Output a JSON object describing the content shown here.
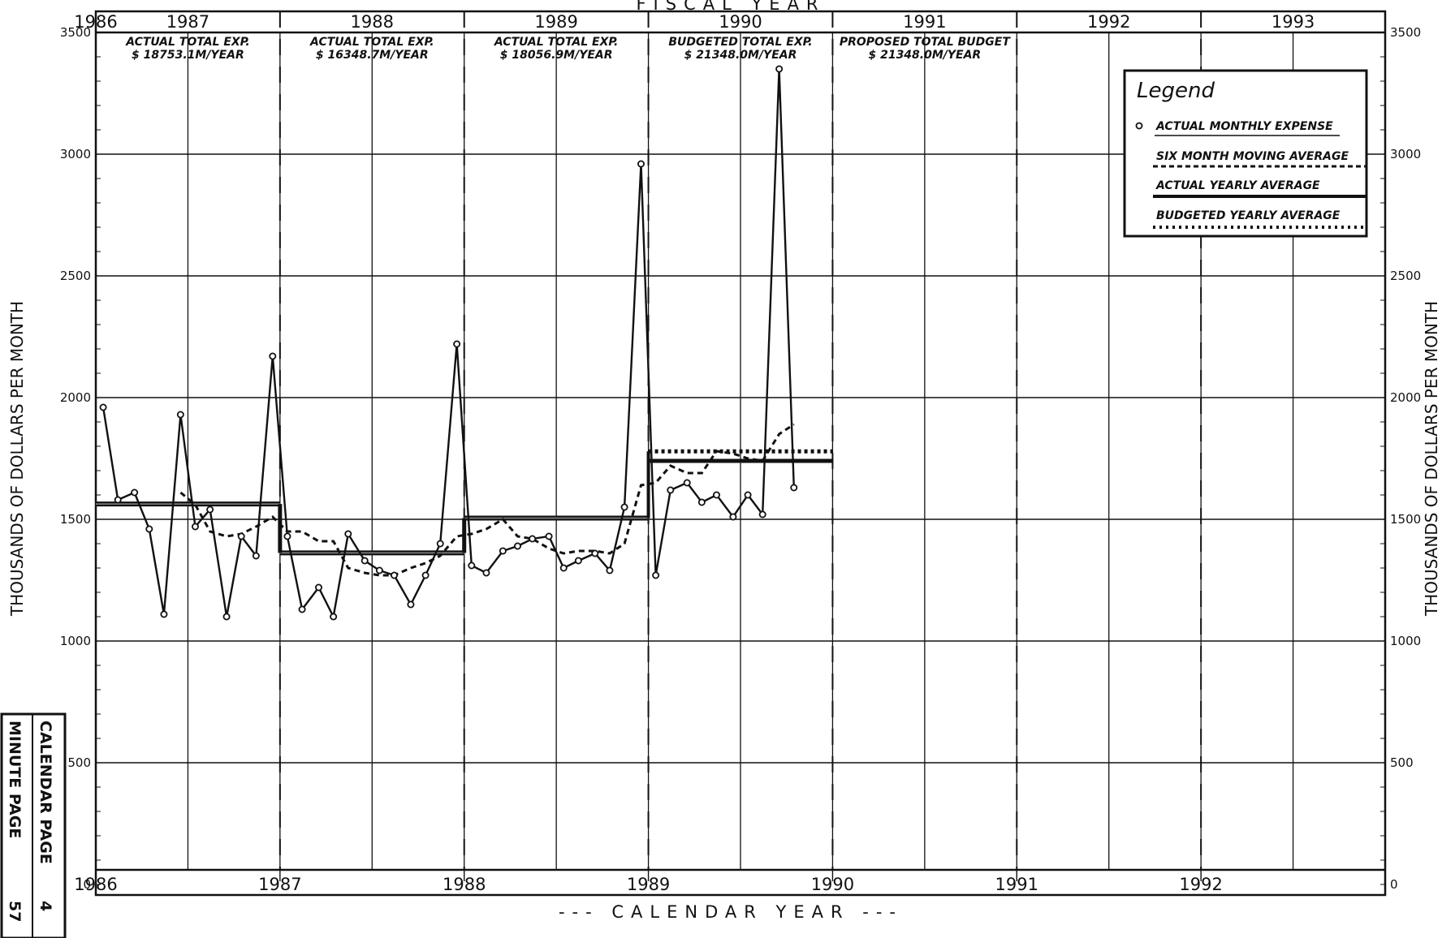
{
  "chart_data": {
    "type": "line",
    "title": "FISCAL YEAR",
    "xlabel": "--- CALENDAR YEAR ---",
    "ylabel": "THOUSANDS OF DOLLARS PER MONTH",
    "ylim": [
      0,
      3500
    ],
    "y_ticks": [
      "0",
      "500",
      "1000",
      "1500",
      "2000",
      "2500",
      "3000",
      "3500"
    ],
    "x_range": [
      1986,
      1993
    ],
    "calendar_years": [
      "1986",
      "1987",
      "1988",
      "1989",
      "1990",
      "1991",
      "1992"
    ],
    "fiscal_years": [
      {
        "label": "1986",
        "start": 1985.5
      },
      {
        "label": "1987",
        "start": 1986.0
      },
      {
        "label": "1988",
        "start": 1987.0
      },
      {
        "label": "1989",
        "start": 1988.0
      },
      {
        "label": "1990",
        "start": 1989.0
      },
      {
        "label": "1991",
        "start": 1990.0
      },
      {
        "label": "1992",
        "start": 1991.0
      },
      {
        "label": "1993",
        "start": 1992.0
      }
    ],
    "annotations": [
      {
        "lines": [
          "ACTUAL TOTAL EXP.",
          "$ 18753.1M/YEAR"
        ],
        "x": 1986.5
      },
      {
        "lines": [
          "ACTUAL TOTAL EXP.",
          "$ 16348.7M/YEAR"
        ],
        "x": 1987.5
      },
      {
        "lines": [
          "ACTUAL TOTAL EXP.",
          "$ 18056.9M/YEAR"
        ],
        "x": 1988.5
      },
      {
        "lines": [
          "BUDGETED TOTAL EXP.",
          "$ 21348.0M/YEAR"
        ],
        "x": 1989.5
      },
      {
        "lines": [
          "PROPOSED TOTAL BUDGET",
          "$ 21348.0M/YEAR"
        ],
        "x": 1990.5
      }
    ],
    "grid": true,
    "legend_position": "top-right",
    "legend_title": "Legend",
    "series": [
      {
        "name": "ACTUAL MONTHLY EXPENSE",
        "style": "solid-markers",
        "x": [
          1986.04,
          1986.12,
          1986.21,
          1986.29,
          1986.37,
          1986.46,
          1986.54,
          1986.62,
          1986.71,
          1986.79,
          1986.87,
          1986.96,
          1987.04,
          1987.12,
          1987.21,
          1987.29,
          1987.37,
          1987.46,
          1987.54,
          1987.62,
          1987.71,
          1987.79,
          1987.87,
          1987.96,
          1988.04,
          1988.12,
          1988.21,
          1988.29,
          1988.37,
          1988.46,
          1988.54,
          1988.62,
          1988.71,
          1988.79,
          1988.87,
          1988.96,
          1989.04,
          1989.12,
          1989.21,
          1989.29,
          1989.37,
          1989.46,
          1989.54,
          1989.62,
          1989.71,
          1989.79,
          1989.87,
          1989.96
        ],
        "y": [
          1960,
          1580,
          1610,
          1460,
          1110,
          1930,
          1470,
          1540,
          1100,
          1430,
          1350,
          2170,
          1430,
          1130,
          1220,
          1100,
          1440,
          1330,
          1290,
          1270,
          1150,
          1270,
          1400,
          2220,
          1310,
          1280,
          1370,
          1390,
          1420,
          1430,
          1300,
          1330,
          1360,
          1290,
          1550,
          2960,
          1270,
          1620,
          1650,
          1570,
          1600,
          1510,
          1600,
          1520,
          3350,
          1630,
          null,
          null
        ]
      },
      {
        "name": "SIX MONTH MOVING AVERAGE",
        "style": "dashed",
        "x": [
          1986.46,
          1986.54,
          1986.62,
          1986.71,
          1986.79,
          1986.87,
          1986.96,
          1987.04,
          1987.12,
          1987.21,
          1987.29,
          1987.37,
          1987.46,
          1987.54,
          1987.62,
          1987.71,
          1987.79,
          1987.87,
          1987.96,
          1988.04,
          1988.12,
          1988.21,
          1988.29,
          1988.37,
          1988.46,
          1988.54,
          1988.62,
          1988.71,
          1988.79,
          1988.87,
          1988.96,
          1989.04,
          1989.12,
          1989.21,
          1989.29,
          1989.37,
          1989.46,
          1989.54,
          1989.62,
          1989.71,
          1989.79
        ],
        "y": [
          1610,
          1560,
          1450,
          1430,
          1440,
          1470,
          1510,
          1450,
          1450,
          1410,
          1410,
          1300,
          1280,
          1270,
          1270,
          1300,
          1320,
          1350,
          1430,
          1440,
          1460,
          1500,
          1430,
          1420,
          1380,
          1360,
          1370,
          1370,
          1360,
          1400,
          1640,
          1650,
          1720,
          1690,
          1690,
          1780,
          1770,
          1750,
          1740,
          1850,
          1890
        ]
      },
      {
        "name": "ACTUAL YEARLY AVERAGE",
        "style": "step-solid",
        "segments": [
          {
            "x": [
              1986.0,
              1987.0
            ],
            "y": 1563
          },
          {
            "x": [
              1987.0,
              1988.0
            ],
            "y": 1362
          },
          {
            "x": [
              1988.0,
              1989.0
            ],
            "y": 1505
          }
        ]
      },
      {
        "name": "BUDGETED YEARLY AVERAGE",
        "style": "step-dotted",
        "segments": [
          {
            "x": [
              1989.0,
              1990.0
            ],
            "y": 1779
          }
        ]
      }
    ],
    "level_lines": [
      {
        "x": [
          1989.0,
          1990.0
        ],
        "y": 1740
      }
    ]
  },
  "stamp": {
    "line1": "CALENDAR PAGE",
    "line2": "MINUTE PAGE",
    "value1": "4",
    "value2": "57"
  }
}
